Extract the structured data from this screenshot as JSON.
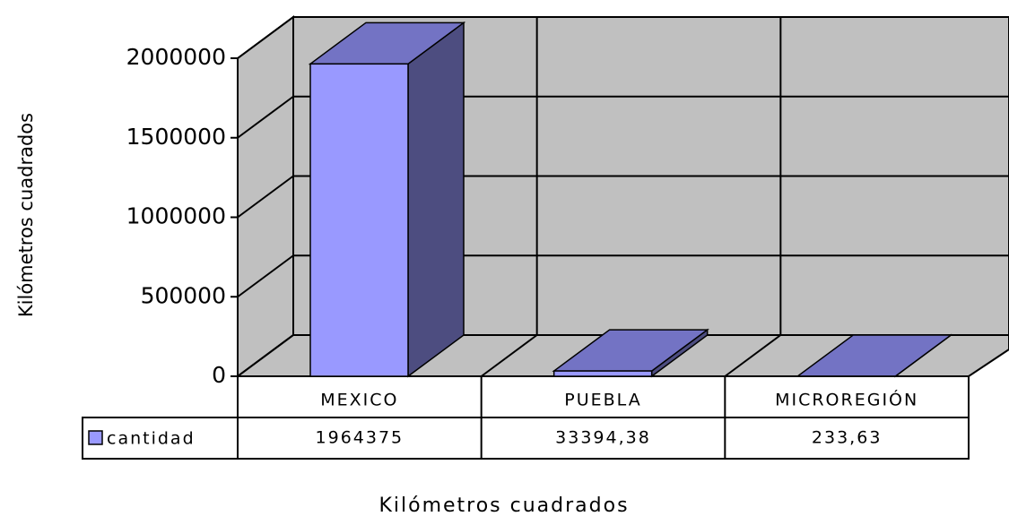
{
  "chart_data": {
    "type": "bar3d",
    "y_label": "Kilómetros cuadrados",
    "x_label": "Kilómetros cuadrados",
    "categories": [
      "MEXICO",
      "PUEBLA",
      "MICROREGIÓN"
    ],
    "series": [
      {
        "name": "cantidad",
        "color": "#9999ff",
        "values": [
          1964375,
          33394.38,
          233.63
        ],
        "value_labels": [
          "1964375",
          "33394,38",
          "233,63"
        ]
      }
    ],
    "ylim": [
      0,
      2000000
    ],
    "yticks": [
      0,
      500000,
      1000000,
      1500000,
      2000000
    ],
    "grid": true
  }
}
